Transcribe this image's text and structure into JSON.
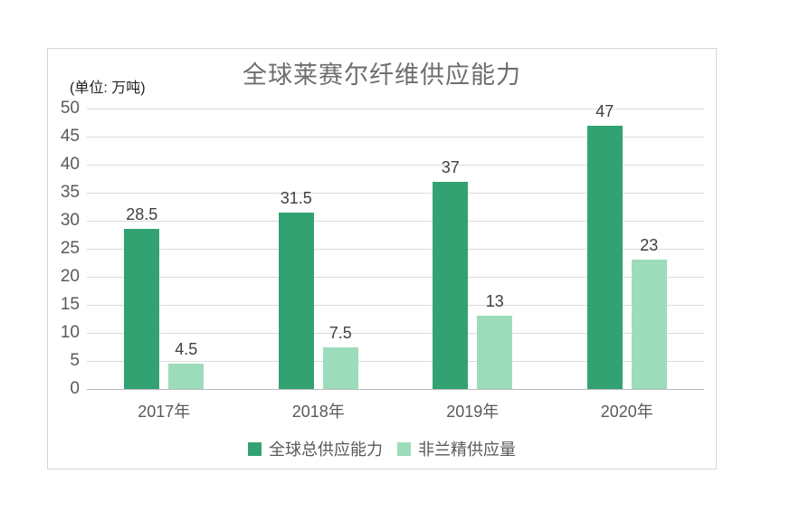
{
  "chart_data": {
    "type": "bar",
    "title": "全球莱赛尔纤维供应能力",
    "unit_label": "(单位: 万吨)",
    "categories": [
      "2017年",
      "2018年",
      "2019年",
      "2020年"
    ],
    "series": [
      {
        "name": "全球总供应能力",
        "color": "#33a273",
        "values": [
          28.5,
          31.5,
          37,
          47
        ]
      },
      {
        "name": "非兰精供应量",
        "color": "#9cdcba",
        "values": [
          4.5,
          7.5,
          13,
          23
        ]
      }
    ],
    "y_ticks": [
      50,
      45,
      40,
      35,
      30,
      25,
      20,
      15,
      10,
      5,
      0
    ],
    "ylim": [
      0,
      50
    ],
    "grid": true,
    "legend_position": "bottom"
  }
}
